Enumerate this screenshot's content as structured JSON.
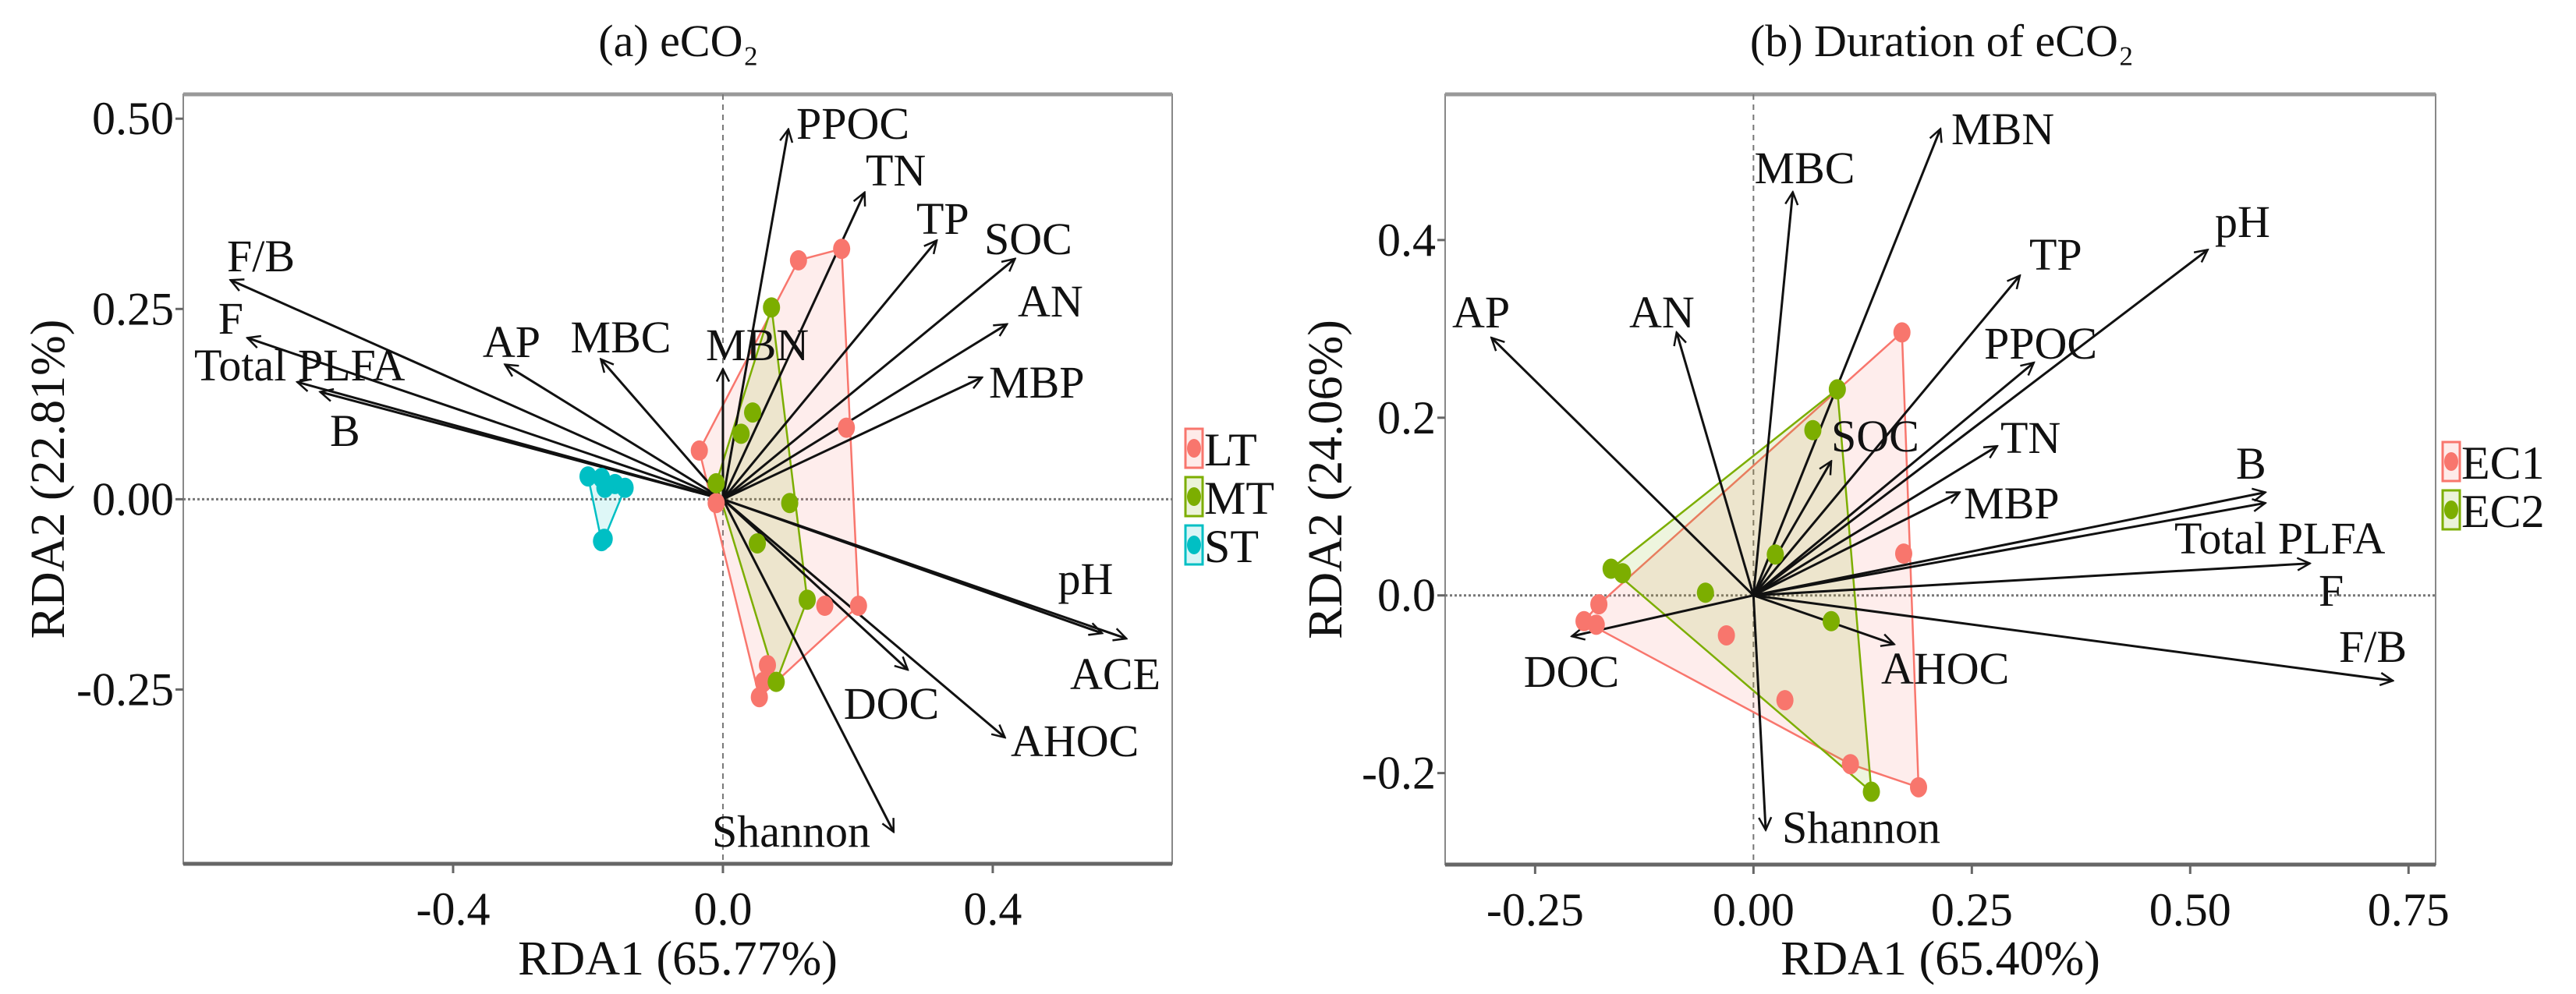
{
  "chart_data": [
    {
      "type": "scatter",
      "title": "(a) eCO₂",
      "xlabel": "RDA1 (65.77%)",
      "ylabel": "RDA2 (22.81%)",
      "xlim": [
        -0.8,
        0.666
      ],
      "ylim": [
        -0.479,
        0.532
      ],
      "xticks": [
        -0.4,
        0.0,
        0.4
      ],
      "xtick_labels": [
        "-0.4",
        "0.0",
        "0.4"
      ],
      "yticks": [
        -0.25,
        0.0,
        0.25,
        0.5
      ],
      "ytick_labels": [
        "-0.25",
        "0.00",
        "0.25",
        "0.50"
      ],
      "grid": false,
      "reference_lines": "dashed at x=0 and y=0",
      "legend_position": "right",
      "groups": [
        {
          "name": "LT",
          "color": "#F8766D",
          "points": [
            [
              -0.035,
              0.064
            ],
            [
              0.112,
              0.314
            ],
            [
              0.176,
              0.329
            ],
            [
              0.183,
              0.094
            ],
            [
              0.151,
              -0.14
            ],
            [
              0.201,
              -0.14
            ],
            [
              0.066,
              -0.218
            ],
            [
              0.06,
              -0.24
            ],
            [
              0.054,
              -0.26
            ],
            [
              -0.01,
              -0.005
            ]
          ]
        },
        {
          "name": "MT",
          "color": "#7CAE00",
          "points": [
            [
              0.072,
              0.252
            ],
            [
              0.044,
              0.114
            ],
            [
              0.027,
              0.086
            ],
            [
              -0.01,
              0.021
            ],
            [
              0.099,
              -0.005
            ],
            [
              0.051,
              -0.058
            ],
            [
              0.125,
              -0.132
            ],
            [
              0.079,
              -0.24
            ]
          ]
        },
        {
          "name": "ST",
          "color": "#00BFC4",
          "points": [
            [
              -0.2,
              0.03
            ],
            [
              -0.18,
              0.028
            ],
            [
              -0.16,
              0.02
            ],
            [
              -0.145,
              0.015
            ],
            [
              -0.175,
              0.015
            ],
            [
              -0.18,
              -0.055
            ],
            [
              -0.176,
              -0.052
            ]
          ]
        }
      ],
      "arrows": [
        {
          "label": "PPOC",
          "x": 0.097,
          "y": 0.486
        },
        {
          "label": "TN",
          "x": 0.21,
          "y": 0.403
        },
        {
          "label": "TP",
          "x": 0.317,
          "y": 0.34
        },
        {
          "label": "SOC",
          "x": 0.433,
          "y": 0.316
        },
        {
          "label": "AN",
          "x": 0.421,
          "y": 0.23
        },
        {
          "label": "MBP",
          "x": 0.384,
          "y": 0.16
        },
        {
          "label": "MBN",
          "x": 0.0,
          "y": 0.171
        },
        {
          "label": "MBC",
          "x": -0.181,
          "y": 0.184
        },
        {
          "label": "AP",
          "x": -0.323,
          "y": 0.177
        },
        {
          "label": "F/B",
          "x": -0.73,
          "y": 0.288
        },
        {
          "label": "F",
          "x": -0.705,
          "y": 0.212
        },
        {
          "label": "Total PLFA",
          "x": -0.631,
          "y": 0.154
        },
        {
          "label": "B",
          "x": -0.597,
          "y": 0.141
        },
        {
          "label": "pH",
          "x": 0.562,
          "y": -0.176
        },
        {
          "label": "ACE",
          "x": 0.598,
          "y": -0.183
        },
        {
          "label": "DOC",
          "x": 0.274,
          "y": -0.224
        },
        {
          "label": "AHOC",
          "x": 0.418,
          "y": -0.313
        },
        {
          "label": "Shannon",
          "x": 0.253,
          "y": -0.437
        }
      ]
    },
    {
      "type": "scatter",
      "title": "(b) Duration of eCO₂",
      "xlabel": "RDA1 (65.40%)",
      "ylabel": "RDA2 (24.06%)",
      "xlim": [
        -0.353,
        0.781
      ],
      "ylim": [
        -0.303,
        0.564
      ],
      "xticks": [
        -0.25,
        0.0,
        0.25,
        0.5,
        0.75
      ],
      "xtick_labels": [
        "-0.25",
        "0.00",
        "0.25",
        "0.50",
        "0.75"
      ],
      "yticks": [
        -0.2,
        0.0,
        0.2,
        0.4
      ],
      "ytick_labels": [
        "-0.2",
        "0.0",
        "0.2",
        "0.4"
      ],
      "grid": false,
      "reference_lines": "dashed at x=0 and y=0",
      "legend_position": "right",
      "groups": [
        {
          "name": "EC1",
          "color": "#F8766D",
          "points": [
            [
              0.17,
              0.296
            ],
            [
              0.172,
              0.047
            ],
            [
              -0.177,
              -0.01
            ],
            [
              -0.194,
              -0.029
            ],
            [
              -0.18,
              -0.033
            ],
            [
              -0.031,
              -0.045
            ],
            [
              0.036,
              -0.118
            ],
            [
              0.111,
              -0.19
            ],
            [
              0.189,
              -0.216
            ]
          ]
        },
        {
          "name": "EC2",
          "color": "#7CAE00",
          "points": [
            [
              0.096,
              0.232
            ],
            [
              0.068,
              0.186
            ],
            [
              0.025,
              0.046
            ],
            [
              -0.163,
              0.03
            ],
            [
              -0.15,
              0.025
            ],
            [
              -0.055,
              0.003
            ],
            [
              0.089,
              -0.029
            ],
            [
              0.135,
              -0.221
            ]
          ]
        }
      ],
      "arrows": [
        {
          "label": "MBN",
          "x": 0.214,
          "y": 0.525
        },
        {
          "label": "MBC",
          "x": 0.045,
          "y": 0.454
        },
        {
          "label": "TP",
          "x": 0.305,
          "y": 0.36
        },
        {
          "label": "pH",
          "x": 0.52,
          "y": 0.389
        },
        {
          "label": "AP",
          "x": -0.3,
          "y": 0.29
        },
        {
          "label": "AN",
          "x": -0.088,
          "y": 0.296
        },
        {
          "label": "PPOC",
          "x": 0.321,
          "y": 0.262
        },
        {
          "label": "SOC",
          "x": 0.089,
          "y": 0.151
        },
        {
          "label": "TN",
          "x": 0.279,
          "y": 0.168
        },
        {
          "label": "B",
          "x": 0.586,
          "y": 0.116
        },
        {
          "label": "MBP",
          "x": 0.236,
          "y": 0.116
        },
        {
          "label": "Total PLFA",
          "x": 0.586,
          "y": 0.104
        },
        {
          "label": "F",
          "x": 0.637,
          "y": 0.036
        },
        {
          "label": "F/B",
          "x": 0.732,
          "y": -0.096
        },
        {
          "label": "AHOC",
          "x": 0.161,
          "y": -0.055
        },
        {
          "label": "DOC",
          "x": -0.208,
          "y": -0.046
        },
        {
          "label": "Shannon",
          "x": 0.014,
          "y": -0.264
        }
      ]
    }
  ]
}
